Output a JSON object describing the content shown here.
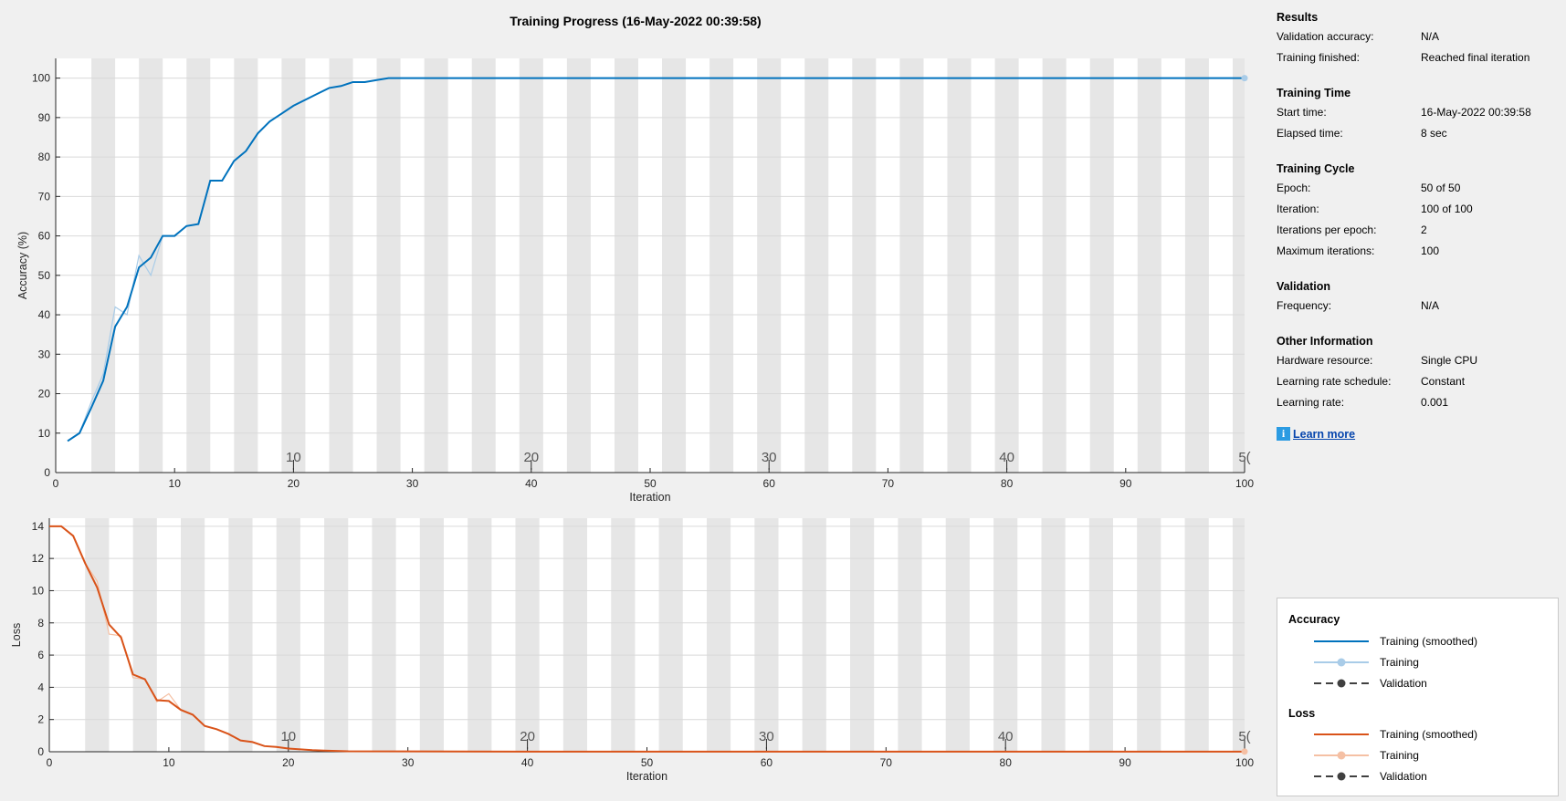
{
  "title": "Training Progress (16-May-2022 00:39:58)",
  "colors": {
    "accuracy_smoothed": "#0072bd",
    "accuracy_training": "#a9cce8",
    "loss_smoothed": "#d95319",
    "loss_training": "#f5c0a4",
    "validation": "#404040",
    "band": "#e6e6e6",
    "grid": "#d9d9d9"
  },
  "info": {
    "sections": [
      {
        "heading": "Results",
        "rows": [
          {
            "key": "Validation accuracy:",
            "value": "N/A"
          },
          {
            "key": "Training finished:",
            "value": "Reached final iteration"
          }
        ]
      },
      {
        "heading": "Training Time",
        "rows": [
          {
            "key": "Start time:",
            "value": "16-May-2022 00:39:58"
          },
          {
            "key": "Elapsed time:",
            "value": "8 sec"
          }
        ]
      },
      {
        "heading": "Training Cycle",
        "rows": [
          {
            "key": "Epoch:",
            "value": "50 of 50"
          },
          {
            "key": "Iteration:",
            "value": "100 of 100"
          },
          {
            "key": "Iterations per epoch:",
            "value": "2"
          },
          {
            "key": "Maximum iterations:",
            "value": "100"
          }
        ]
      },
      {
        "heading": "Validation",
        "rows": [
          {
            "key": "Frequency:",
            "value": "N/A"
          }
        ]
      },
      {
        "heading": "Other Information",
        "rows": [
          {
            "key": "Hardware resource:",
            "value": "Single CPU"
          },
          {
            "key": "Learning rate schedule:",
            "value": "Constant"
          },
          {
            "key": "Learning rate:",
            "value": "0.001"
          }
        ]
      }
    ],
    "learn_more": "Learn more",
    "learn_more_icon": "info-icon"
  },
  "legend": {
    "accuracy_heading": "Accuracy",
    "loss_heading": "Loss",
    "accuracy_items": [
      "Training (smoothed)",
      "Training",
      "Validation"
    ],
    "loss_items": [
      "Training (smoothed)",
      "Training",
      "Validation"
    ]
  },
  "chart_data": [
    {
      "type": "line",
      "name": "accuracy",
      "xlabel": "Iteration",
      "ylabel": "Accuracy (%)",
      "xlim": [
        0,
        100
      ],
      "ylim": [
        0,
        105
      ],
      "x_ticks": [
        0,
        10,
        20,
        30,
        40,
        50,
        60,
        70,
        80,
        90,
        100
      ],
      "y_ticks": [
        0,
        10,
        20,
        30,
        40,
        50,
        60,
        70,
        80,
        90,
        100
      ],
      "epoch_ticks": [
        10,
        20,
        30,
        40,
        50
      ],
      "epoch_tick_labels": [
        "10",
        "20",
        "30",
        "40",
        "5("
      ],
      "iterations_per_epoch": 2,
      "grid": true,
      "series": [
        {
          "name": "Training (smoothed)",
          "x": [
            1,
            2,
            3,
            4,
            5,
            6,
            7,
            8,
            9,
            10,
            11,
            12,
            13,
            14,
            15,
            16,
            17,
            18,
            19,
            20,
            21,
            22,
            23,
            24,
            25,
            26,
            27,
            28,
            29,
            30,
            40,
            50,
            60,
            70,
            80,
            90,
            100
          ],
          "y": [
            8,
            10,
            16.5,
            23.3,
            37,
            42,
            52,
            54.5,
            60,
            60,
            62.5,
            63,
            74,
            74,
            79,
            81.5,
            86,
            89,
            91,
            93,
            94.5,
            96,
            97.5,
            98,
            99,
            99,
            99.5,
            100,
            100,
            100,
            100,
            100,
            100,
            100,
            100,
            100,
            100
          ]
        },
        {
          "name": "Training",
          "x": [
            1,
            2,
            3,
            4,
            5,
            6,
            7,
            8,
            9,
            10,
            11,
            12,
            13,
            14,
            15,
            16,
            17,
            18,
            19,
            20,
            21,
            22,
            23,
            24,
            25,
            26,
            27,
            28,
            29,
            30,
            40,
            50,
            60,
            70,
            80,
            90,
            100
          ],
          "y": [
            8,
            10,
            18,
            25,
            42,
            40,
            55,
            50,
            60,
            60,
            62.5,
            63,
            74,
            74,
            79,
            81.5,
            86,
            89,
            91,
            93,
            94.5,
            96,
            97.5,
            98,
            99,
            99,
            99.5,
            100,
            100,
            100,
            100,
            100,
            100,
            100,
            100,
            100,
            100
          ]
        }
      ]
    },
    {
      "type": "line",
      "name": "loss",
      "xlabel": "Iteration",
      "ylabel": "Loss",
      "xlim": [
        0,
        100
      ],
      "ylim": [
        0,
        14.5
      ],
      "x_ticks": [
        0,
        10,
        20,
        30,
        40,
        50,
        60,
        70,
        80,
        90,
        100
      ],
      "y_ticks": [
        0,
        2,
        4,
        6,
        8,
        10,
        12,
        14
      ],
      "epoch_ticks": [
        10,
        20,
        30,
        40,
        50
      ],
      "epoch_tick_labels": [
        "10",
        "20",
        "30",
        "40",
        "5("
      ],
      "iterations_per_epoch": 2,
      "grid": true,
      "series": [
        {
          "name": "Training (smoothed)",
          "x": [
            0,
            1,
            2,
            3,
            4,
            5,
            6,
            7,
            8,
            9,
            10,
            11,
            12,
            13,
            14,
            15,
            16,
            17,
            18,
            19,
            20,
            21,
            22,
            23,
            24,
            25,
            30,
            40,
            50,
            60,
            70,
            80,
            90,
            100
          ],
          "y": [
            14,
            14,
            13.4,
            11.7,
            10.2,
            7.9,
            7.1,
            4.8,
            4.5,
            3.2,
            3.15,
            2.6,
            2.3,
            1.6,
            1.4,
            1.1,
            0.7,
            0.6,
            0.35,
            0.3,
            0.2,
            0.15,
            0.1,
            0.07,
            0.05,
            0.03,
            0.02,
            0.01,
            0.01,
            0.01,
            0.01,
            0.01,
            0.01,
            0.01
          ]
        },
        {
          "name": "Training",
          "x": [
            0,
            1,
            2,
            3,
            4,
            5,
            6,
            7,
            8,
            9,
            10,
            11,
            12,
            13,
            14,
            15,
            16,
            17,
            18,
            19,
            20,
            21,
            22,
            23,
            24,
            25,
            30,
            40,
            50,
            60,
            70,
            80,
            90,
            100
          ],
          "y": [
            14,
            14,
            13.4,
            11.7,
            10.6,
            7.3,
            7.2,
            4.6,
            4.5,
            3.1,
            3.6,
            2.6,
            2.3,
            1.6,
            1.4,
            1.1,
            0.7,
            0.6,
            0.35,
            0.3,
            0.2,
            0.15,
            0.1,
            0.07,
            0.05,
            0.03,
            0.02,
            0.01,
            0.01,
            0.01,
            0.01,
            0.01,
            0.01,
            0.01
          ]
        }
      ]
    }
  ]
}
